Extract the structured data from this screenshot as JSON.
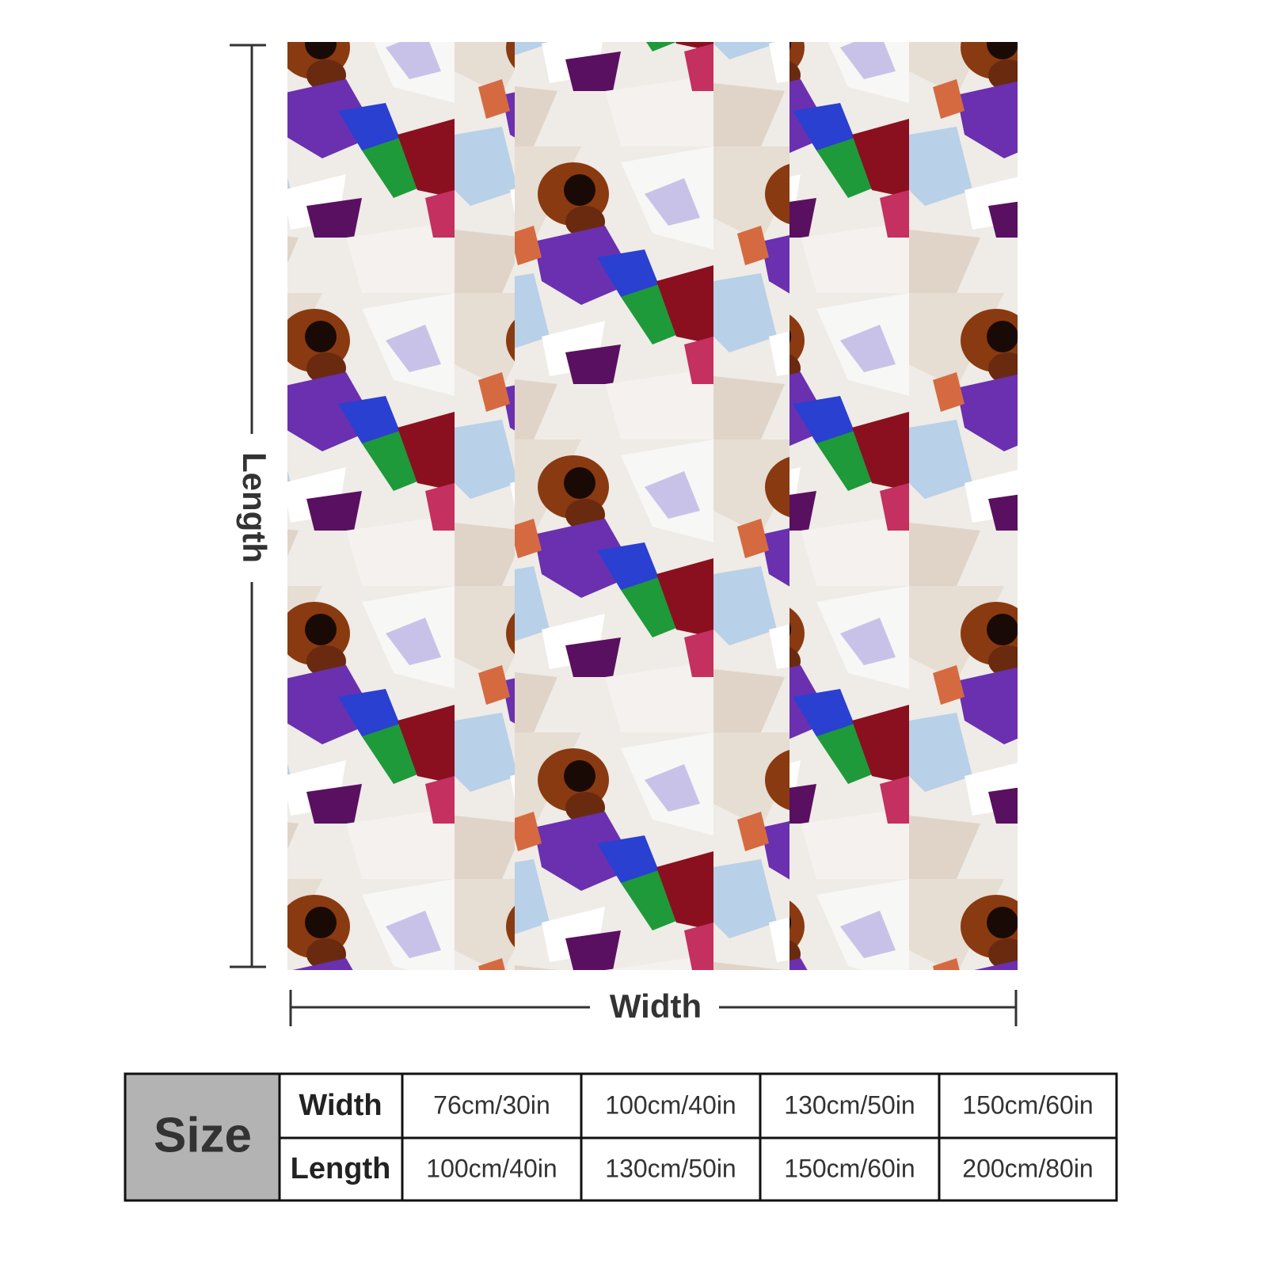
{
  "dimensions": {
    "length_label": "Length",
    "width_label": "Width"
  },
  "table": {
    "header": "Size",
    "rows": [
      [
        "Width",
        "76cm/30in",
        "100cm/40in",
        "130cm/50in",
        "150cm/60in"
      ],
      [
        "Length",
        "100cm/40in",
        "130cm/50in",
        "150cm/60in",
        "200cm/80in"
      ]
    ]
  }
}
